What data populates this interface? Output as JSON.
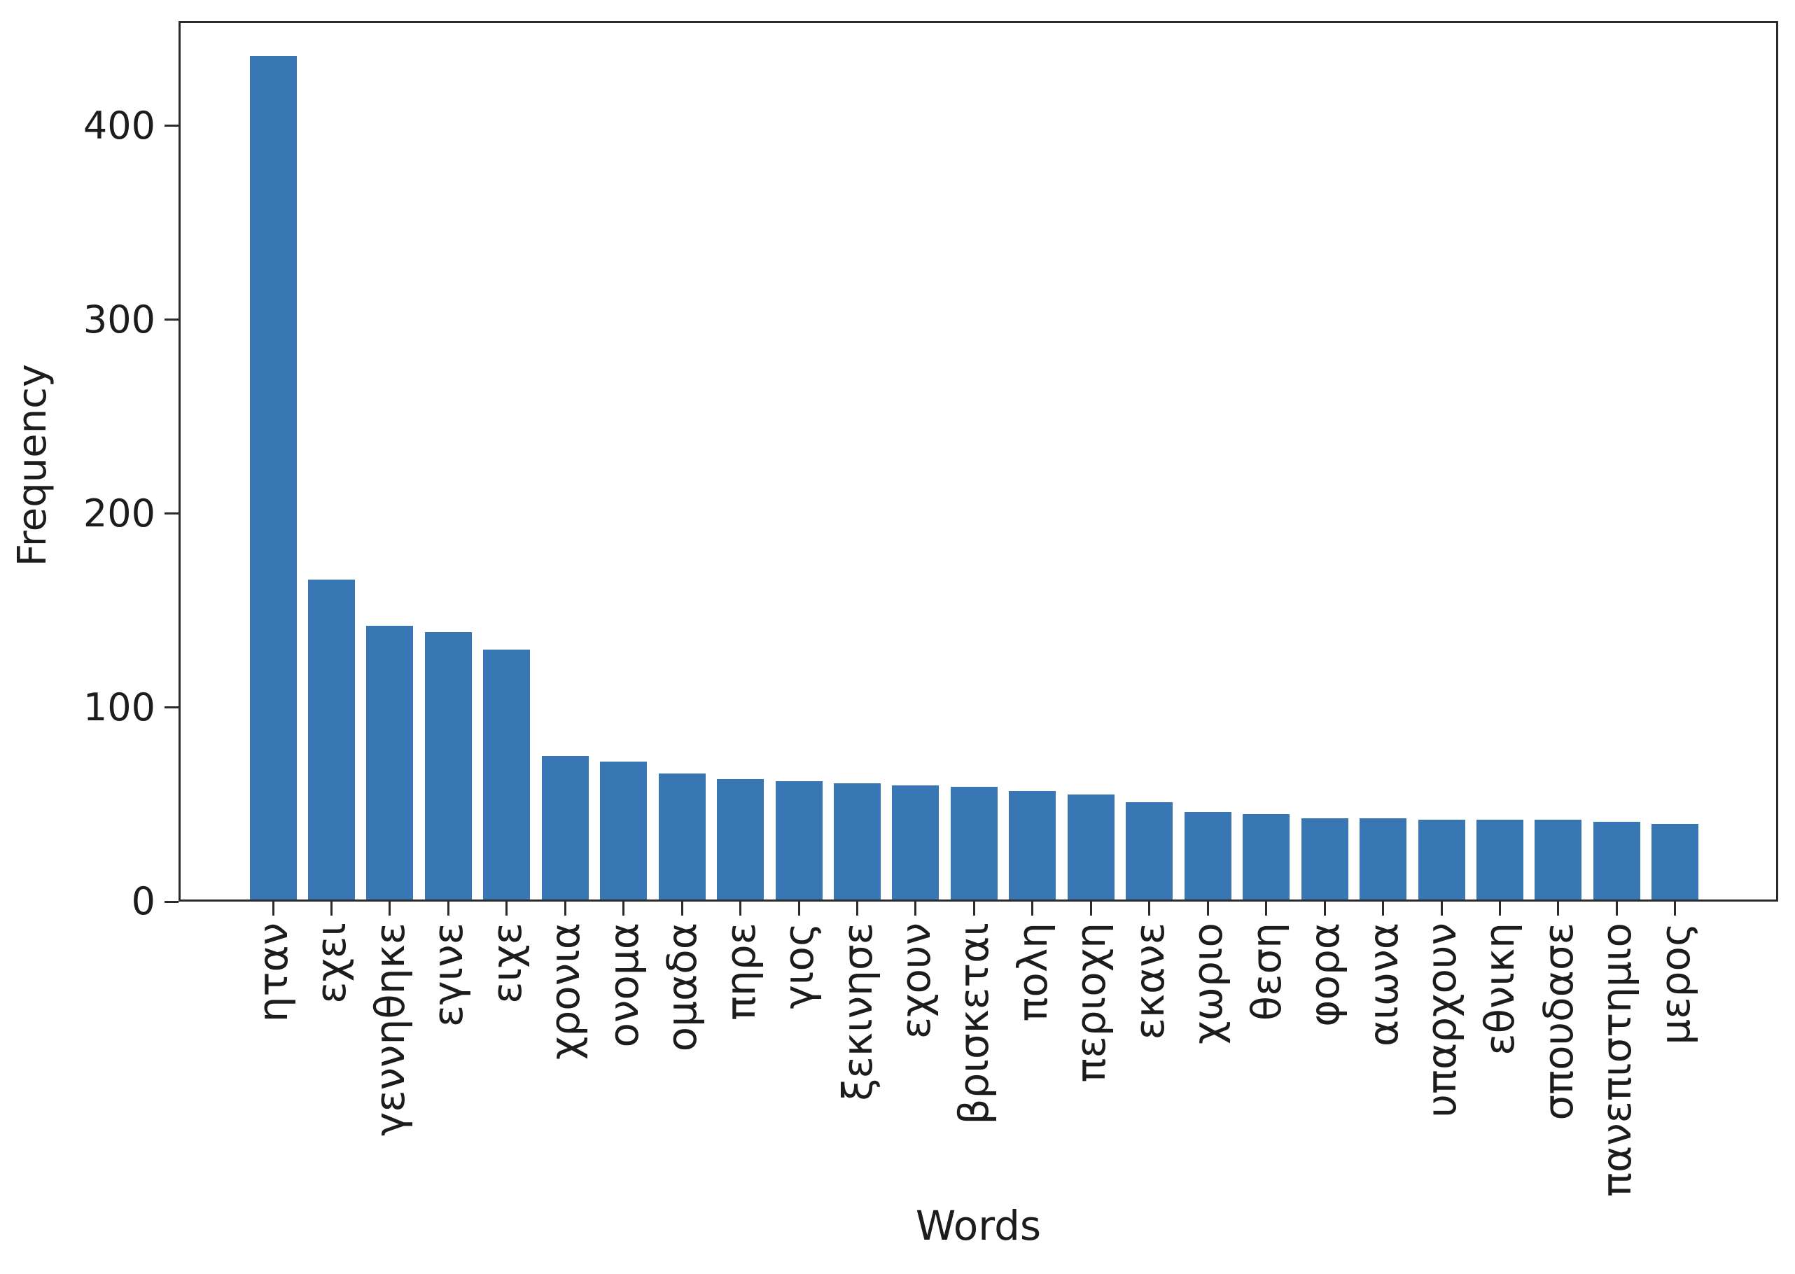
{
  "chart_data": {
    "type": "bar",
    "title": "",
    "xlabel": "Words",
    "ylabel": "Frequency",
    "categories": [
      "ηταν",
      "εχει",
      "γεννηθηκε",
      "εγινε",
      "ειχε",
      "χρονια",
      "ονομα",
      "ομαδα",
      "πηρε",
      "γιος",
      "ξεκινησε",
      "εχουν",
      "βρισκεται",
      "πολη",
      "περιοχη",
      "εκανε",
      "χωριο",
      "θεση",
      "φορα",
      "αιωνα",
      "υπαρχουν",
      "εθνικη",
      "σπουδασε",
      "πανεπιστημιο",
      "μερος"
    ],
    "values": [
      435,
      165,
      141,
      138,
      129,
      74,
      71,
      65,
      62,
      61,
      60,
      59,
      58,
      56,
      54,
      50,
      45,
      44,
      42,
      42,
      41,
      41,
      41,
      40,
      39
    ],
    "yticks": [
      0,
      100,
      200,
      300,
      400
    ],
    "ylim": [
      0,
      454
    ],
    "xtick_rotation_degrees": 90,
    "grid": false,
    "legend": null,
    "bar_color": "#3876b4",
    "axis_color": "#2b2b2b",
    "text_color": "#1c1c1c"
  }
}
